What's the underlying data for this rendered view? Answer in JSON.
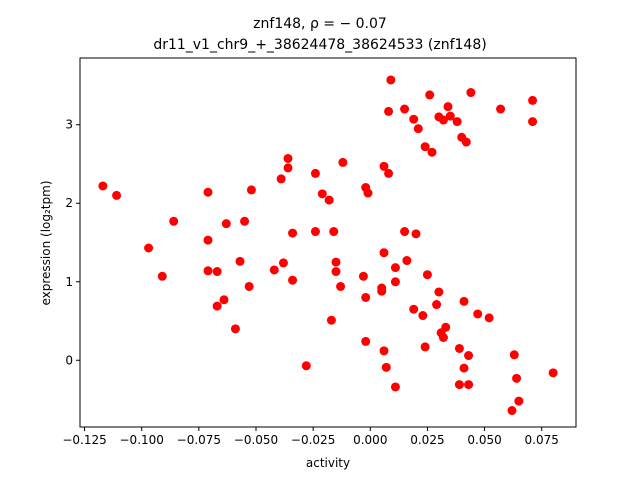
{
  "chart_data": {
    "type": "scatter",
    "title_line1": "znf148, ρ = − 0.07",
    "title_line2": "dr11_v1_chr9_+_38624478_38624533 (znf148)",
    "xlabel": "activity",
    "ylabel": "expression (log₂tpm)",
    "xlim": [
      -0.127,
      0.09
    ],
    "ylim": [
      -0.85,
      3.85
    ],
    "xticks": [
      -0.125,
      -0.1,
      -0.075,
      -0.05,
      -0.025,
      0.0,
      0.025,
      0.05,
      0.075
    ],
    "xtick_labels": [
      "−0.125",
      "−0.100",
      "−0.075",
      "−0.050",
      "−0.025",
      "0.000",
      "0.025",
      "0.050",
      "0.075"
    ],
    "yticks": [
      0,
      1,
      2,
      3
    ],
    "ytick_labels": [
      "0",
      "1",
      "2",
      "3"
    ],
    "grid": false,
    "marker_color": "#ff0000",
    "points": [
      [
        -0.117,
        2.22
      ],
      [
        -0.111,
        2.1
      ],
      [
        -0.097,
        1.43
      ],
      [
        -0.091,
        1.07
      ],
      [
        -0.086,
        1.77
      ],
      [
        -0.071,
        2.14
      ],
      [
        -0.071,
        1.53
      ],
      [
        -0.071,
        1.14
      ],
      [
        -0.067,
        1.13
      ],
      [
        -0.067,
        0.69
      ],
      [
        -0.064,
        0.77
      ],
      [
        -0.063,
        1.74
      ],
      [
        -0.059,
        0.4
      ],
      [
        -0.057,
        1.26
      ],
      [
        -0.055,
        1.77
      ],
      [
        -0.053,
        0.94
      ],
      [
        -0.052,
        2.17
      ],
      [
        -0.042,
        1.15
      ],
      [
        -0.039,
        2.31
      ],
      [
        -0.038,
        1.24
      ],
      [
        -0.036,
        2.57
      ],
      [
        -0.036,
        2.45
      ],
      [
        -0.034,
        1.62
      ],
      [
        -0.034,
        1.02
      ],
      [
        -0.028,
        -0.07
      ],
      [
        -0.024,
        2.38
      ],
      [
        -0.024,
        1.64
      ],
      [
        -0.021,
        2.12
      ],
      [
        -0.018,
        2.04
      ],
      [
        -0.017,
        0.51
      ],
      [
        -0.016,
        1.64
      ],
      [
        -0.015,
        1.25
      ],
      [
        -0.015,
        1.13
      ],
      [
        -0.013,
        0.94
      ],
      [
        -0.012,
        2.52
      ],
      [
        -0.003,
        1.07
      ],
      [
        -0.002,
        0.8
      ],
      [
        -0.002,
        0.24
      ],
      [
        -0.002,
        2.2
      ],
      [
        -0.001,
        2.13
      ],
      [
        0.005,
        0.88
      ],
      [
        0.005,
        0.92
      ],
      [
        0.006,
        1.37
      ],
      [
        0.006,
        0.12
      ],
      [
        0.006,
        2.47
      ],
      [
        0.007,
        -0.09
      ],
      [
        0.008,
        3.17
      ],
      [
        0.008,
        2.38
      ],
      [
        0.009,
        3.57
      ],
      [
        0.011,
        1.0
      ],
      [
        0.011,
        1.18
      ],
      [
        0.011,
        -0.34
      ],
      [
        0.015,
        1.64
      ],
      [
        0.015,
        3.2
      ],
      [
        0.016,
        1.27
      ],
      [
        0.019,
        0.65
      ],
      [
        0.019,
        3.07
      ],
      [
        0.02,
        1.61
      ],
      [
        0.021,
        2.95
      ],
      [
        0.023,
        0.57
      ],
      [
        0.024,
        2.72
      ],
      [
        0.024,
        0.17
      ],
      [
        0.025,
        1.09
      ],
      [
        0.026,
        3.38
      ],
      [
        0.027,
        2.65
      ],
      [
        0.029,
        0.71
      ],
      [
        0.03,
        3.1
      ],
      [
        0.03,
        0.87
      ],
      [
        0.031,
        0.35
      ],
      [
        0.032,
        3.06
      ],
      [
        0.032,
        0.29
      ],
      [
        0.033,
        0.42
      ],
      [
        0.034,
        3.23
      ],
      [
        0.035,
        3.11
      ],
      [
        0.038,
        3.04
      ],
      [
        0.039,
        0.15
      ],
      [
        0.039,
        -0.31
      ],
      [
        0.04,
        2.84
      ],
      [
        0.041,
        0.75
      ],
      [
        0.041,
        -0.1
      ],
      [
        0.042,
        2.78
      ],
      [
        0.043,
        0.06
      ],
      [
        0.043,
        -0.31
      ],
      [
        0.044,
        3.41
      ],
      [
        0.047,
        0.59
      ],
      [
        0.052,
        0.54
      ],
      [
        0.057,
        3.2
      ],
      [
        0.062,
        -0.64
      ],
      [
        0.063,
        0.07
      ],
      [
        0.064,
        -0.23
      ],
      [
        0.065,
        -0.52
      ],
      [
        0.071,
        3.31
      ],
      [
        0.071,
        3.04
      ],
      [
        0.08,
        -0.16
      ]
    ]
  }
}
